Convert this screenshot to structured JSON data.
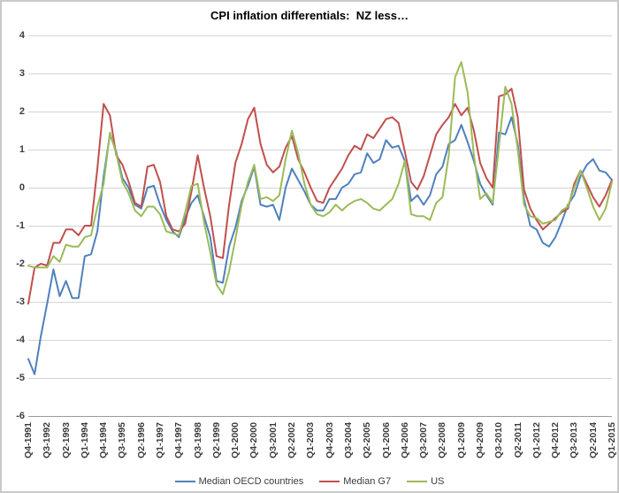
{
  "chart_data": {
    "type": "line",
    "title": "CPI inflation differentials:  NZ less…",
    "xlabel": "",
    "ylabel": "",
    "ylim": [
      -6,
      4
    ],
    "y_ticks": [
      4,
      3,
      2,
      1,
      0,
      -1,
      -2,
      -3,
      -4,
      -5,
      -6
    ],
    "grid": "horizontal",
    "legend_position": "bottom",
    "x_ticks_every_n_points": 3,
    "x_tick_labels": [
      "Q4-1991",
      "Q3-1992",
      "Q2-1993",
      "Q1-1994",
      "Q4-1994",
      "Q3-1995",
      "Q2-1996",
      "Q1-1997",
      "Q4-1997",
      "Q3-1998",
      "Q2-1999",
      "Q1-2000",
      "Q4-2000",
      "Q3-2001",
      "Q2-2002",
      "Q1-2003",
      "Q4-2003",
      "Q3-2004",
      "Q2-2005",
      "Q1-2006",
      "Q4-2006",
      "Q3-2007",
      "Q2-2008",
      "Q1-2009",
      "Q4-2009",
      "Q3-2010",
      "Q2-2011",
      "Q1-2012",
      "Q4-2012",
      "Q3-2013",
      "Q2-2014",
      "Q1-2015"
    ],
    "colors": {
      "gridline": "#d4d4d4",
      "axis_line": "#9b9b9b",
      "axis_text": "#3c3c3c",
      "title_text": "#000000"
    },
    "series": [
      {
        "name": "Median OECD countries",
        "color": "#4F81BD",
        "values": [
          -4.5,
          -4.9,
          -3.9,
          -3.05,
          -2.15,
          -2.85,
          -2.45,
          -2.9,
          -2.9,
          -1.8,
          -1.75,
          -1.15,
          0.3,
          1.4,
          0.95,
          0.25,
          0.0,
          -0.45,
          -0.55,
          0.0,
          0.05,
          -0.45,
          -0.85,
          -1.15,
          -1.3,
          -0.8,
          -0.4,
          -0.2,
          -0.75,
          -1.3,
          -2.45,
          -2.5,
          -1.55,
          -1.05,
          -0.35,
          0.05,
          0.55,
          -0.45,
          -0.5,
          -0.45,
          -0.85,
          0.0,
          0.5,
          0.2,
          -0.1,
          -0.45,
          -0.6,
          -0.6,
          -0.3,
          -0.3,
          0.0,
          0.1,
          0.35,
          0.4,
          0.9,
          0.65,
          0.75,
          1.25,
          1.05,
          1.1,
          0.7,
          -0.35,
          -0.2,
          -0.45,
          -0.2,
          0.35,
          0.55,
          1.15,
          1.25,
          1.65,
          1.2,
          0.7,
          0.1,
          -0.2,
          -0.45,
          1.45,
          1.4,
          1.85,
          1.15,
          -0.3,
          -1.0,
          -1.1,
          -1.45,
          -1.55,
          -1.3,
          -0.9,
          -0.45,
          -0.2,
          0.3,
          0.6,
          0.75,
          0.45,
          0.4,
          0.2
        ]
      },
      {
        "name": "Median G7",
        "color": "#C0504D",
        "values": [
          -3.05,
          -2.1,
          -2.0,
          -2.05,
          -1.45,
          -1.45,
          -1.1,
          -1.1,
          -1.25,
          -1.0,
          -1.0,
          0.5,
          2.2,
          1.9,
          0.85,
          0.6,
          0.15,
          -0.4,
          -0.5,
          0.55,
          0.6,
          0.15,
          -0.75,
          -1.1,
          -1.15,
          -0.95,
          -0.1,
          0.85,
          0.0,
          -0.75,
          -1.8,
          -1.85,
          -0.45,
          0.65,
          1.15,
          1.8,
          2.1,
          1.15,
          0.6,
          0.4,
          0.55,
          1.05,
          1.35,
          0.75,
          0.4,
          0.0,
          -0.35,
          -0.4,
          0.0,
          0.25,
          0.5,
          0.85,
          1.1,
          1.0,
          1.4,
          1.3,
          1.55,
          1.8,
          1.85,
          1.7,
          0.95,
          0.15,
          -0.05,
          0.3,
          0.85,
          1.4,
          1.65,
          1.85,
          2.2,
          1.9,
          2.1,
          1.5,
          0.65,
          0.25,
          0.0,
          2.4,
          2.45,
          2.6,
          1.85,
          -0.05,
          -0.55,
          -0.85,
          -1.1,
          -0.95,
          -0.8,
          -0.65,
          -0.55,
          0.1,
          0.45,
          0.1,
          -0.25,
          -0.5,
          -0.2,
          0.2
        ]
      },
      {
        "name": "US",
        "color": "#9BBB59",
        "values": [
          -2.05,
          -2.1,
          -2.1,
          -2.1,
          -1.8,
          -1.95,
          -1.5,
          -1.55,
          -1.55,
          -1.3,
          -1.25,
          -0.5,
          0.1,
          1.45,
          0.9,
          0.15,
          -0.15,
          -0.6,
          -0.75,
          -0.5,
          -0.5,
          -0.7,
          -1.15,
          -1.2,
          -1.25,
          -0.65,
          0.05,
          0.1,
          -0.9,
          -1.7,
          -2.55,
          -2.8,
          -2.2,
          -1.35,
          -0.45,
          0.15,
          0.6,
          -0.3,
          -0.25,
          -0.35,
          -0.2,
          0.75,
          1.5,
          0.9,
          0.1,
          -0.45,
          -0.7,
          -0.75,
          -0.65,
          -0.45,
          -0.6,
          -0.45,
          -0.35,
          -0.3,
          -0.4,
          -0.55,
          -0.6,
          -0.45,
          -0.3,
          0.1,
          0.7,
          -0.7,
          -0.75,
          -0.75,
          -0.85,
          -0.4,
          -0.25,
          0.85,
          2.9,
          3.3,
          2.5,
          0.85,
          -0.3,
          -0.15,
          -0.4,
          1.1,
          2.65,
          2.2,
          1.0,
          -0.45,
          -0.75,
          -0.8,
          -0.95,
          -0.9,
          -0.85,
          -0.6,
          -0.5,
          0.0,
          0.45,
          0.0,
          -0.5,
          -0.85,
          -0.55,
          0.15
        ]
      }
    ]
  }
}
